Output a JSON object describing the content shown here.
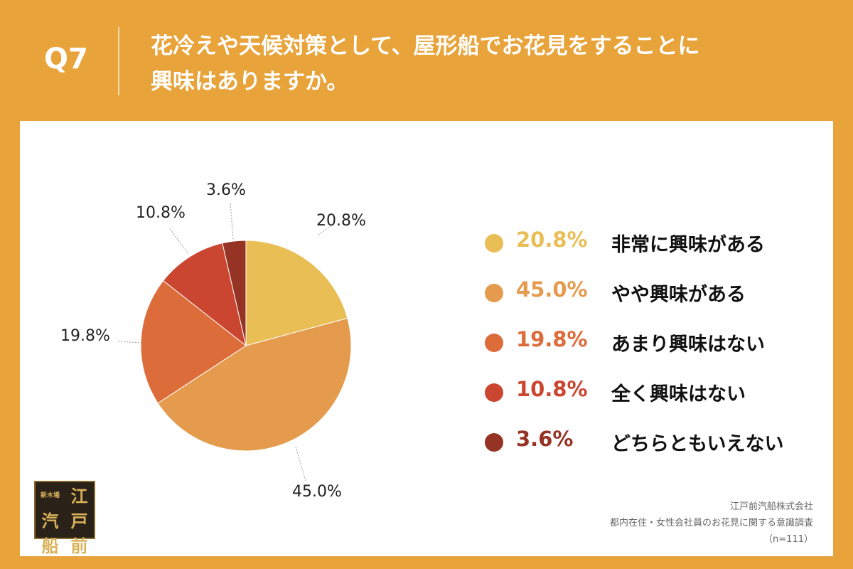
{
  "header": {
    "question_label": "Q7",
    "question_line1": "花冷えや天候対策として、屋形船でお花見をすることに",
    "question_line2": "興味はありますか。"
  },
  "colors": {
    "background": "#E8A33A",
    "slices": [
      "#E8BE55",
      "#E59B4E",
      "#DD6C3B",
      "#CB4630",
      "#953324"
    ]
  },
  "chart_data": {
    "type": "pie",
    "labels": [
      "非常に興味がある",
      "やや興味がある",
      "あまり興味はない",
      "全く興味はない",
      "どちらともいえない"
    ],
    "values": [
      20.8,
      45.0,
      19.8,
      10.8,
      3.6
    ],
    "value_labels": [
      "20.8%",
      "45.0%",
      "19.8%",
      "10.8%",
      "3.6%"
    ],
    "start": "12 o'clock",
    "direction": "clockwise",
    "legend_position": "right"
  },
  "logo": {
    "chars": [
      "新木場",
      "江",
      "汽",
      "戸",
      "船",
      "前"
    ]
  },
  "footer": {
    "company": "江戸前汽船株式会社",
    "survey": "都内在住・女性会社員のお花見に関する意識調査",
    "sample": "（n=111）"
  }
}
